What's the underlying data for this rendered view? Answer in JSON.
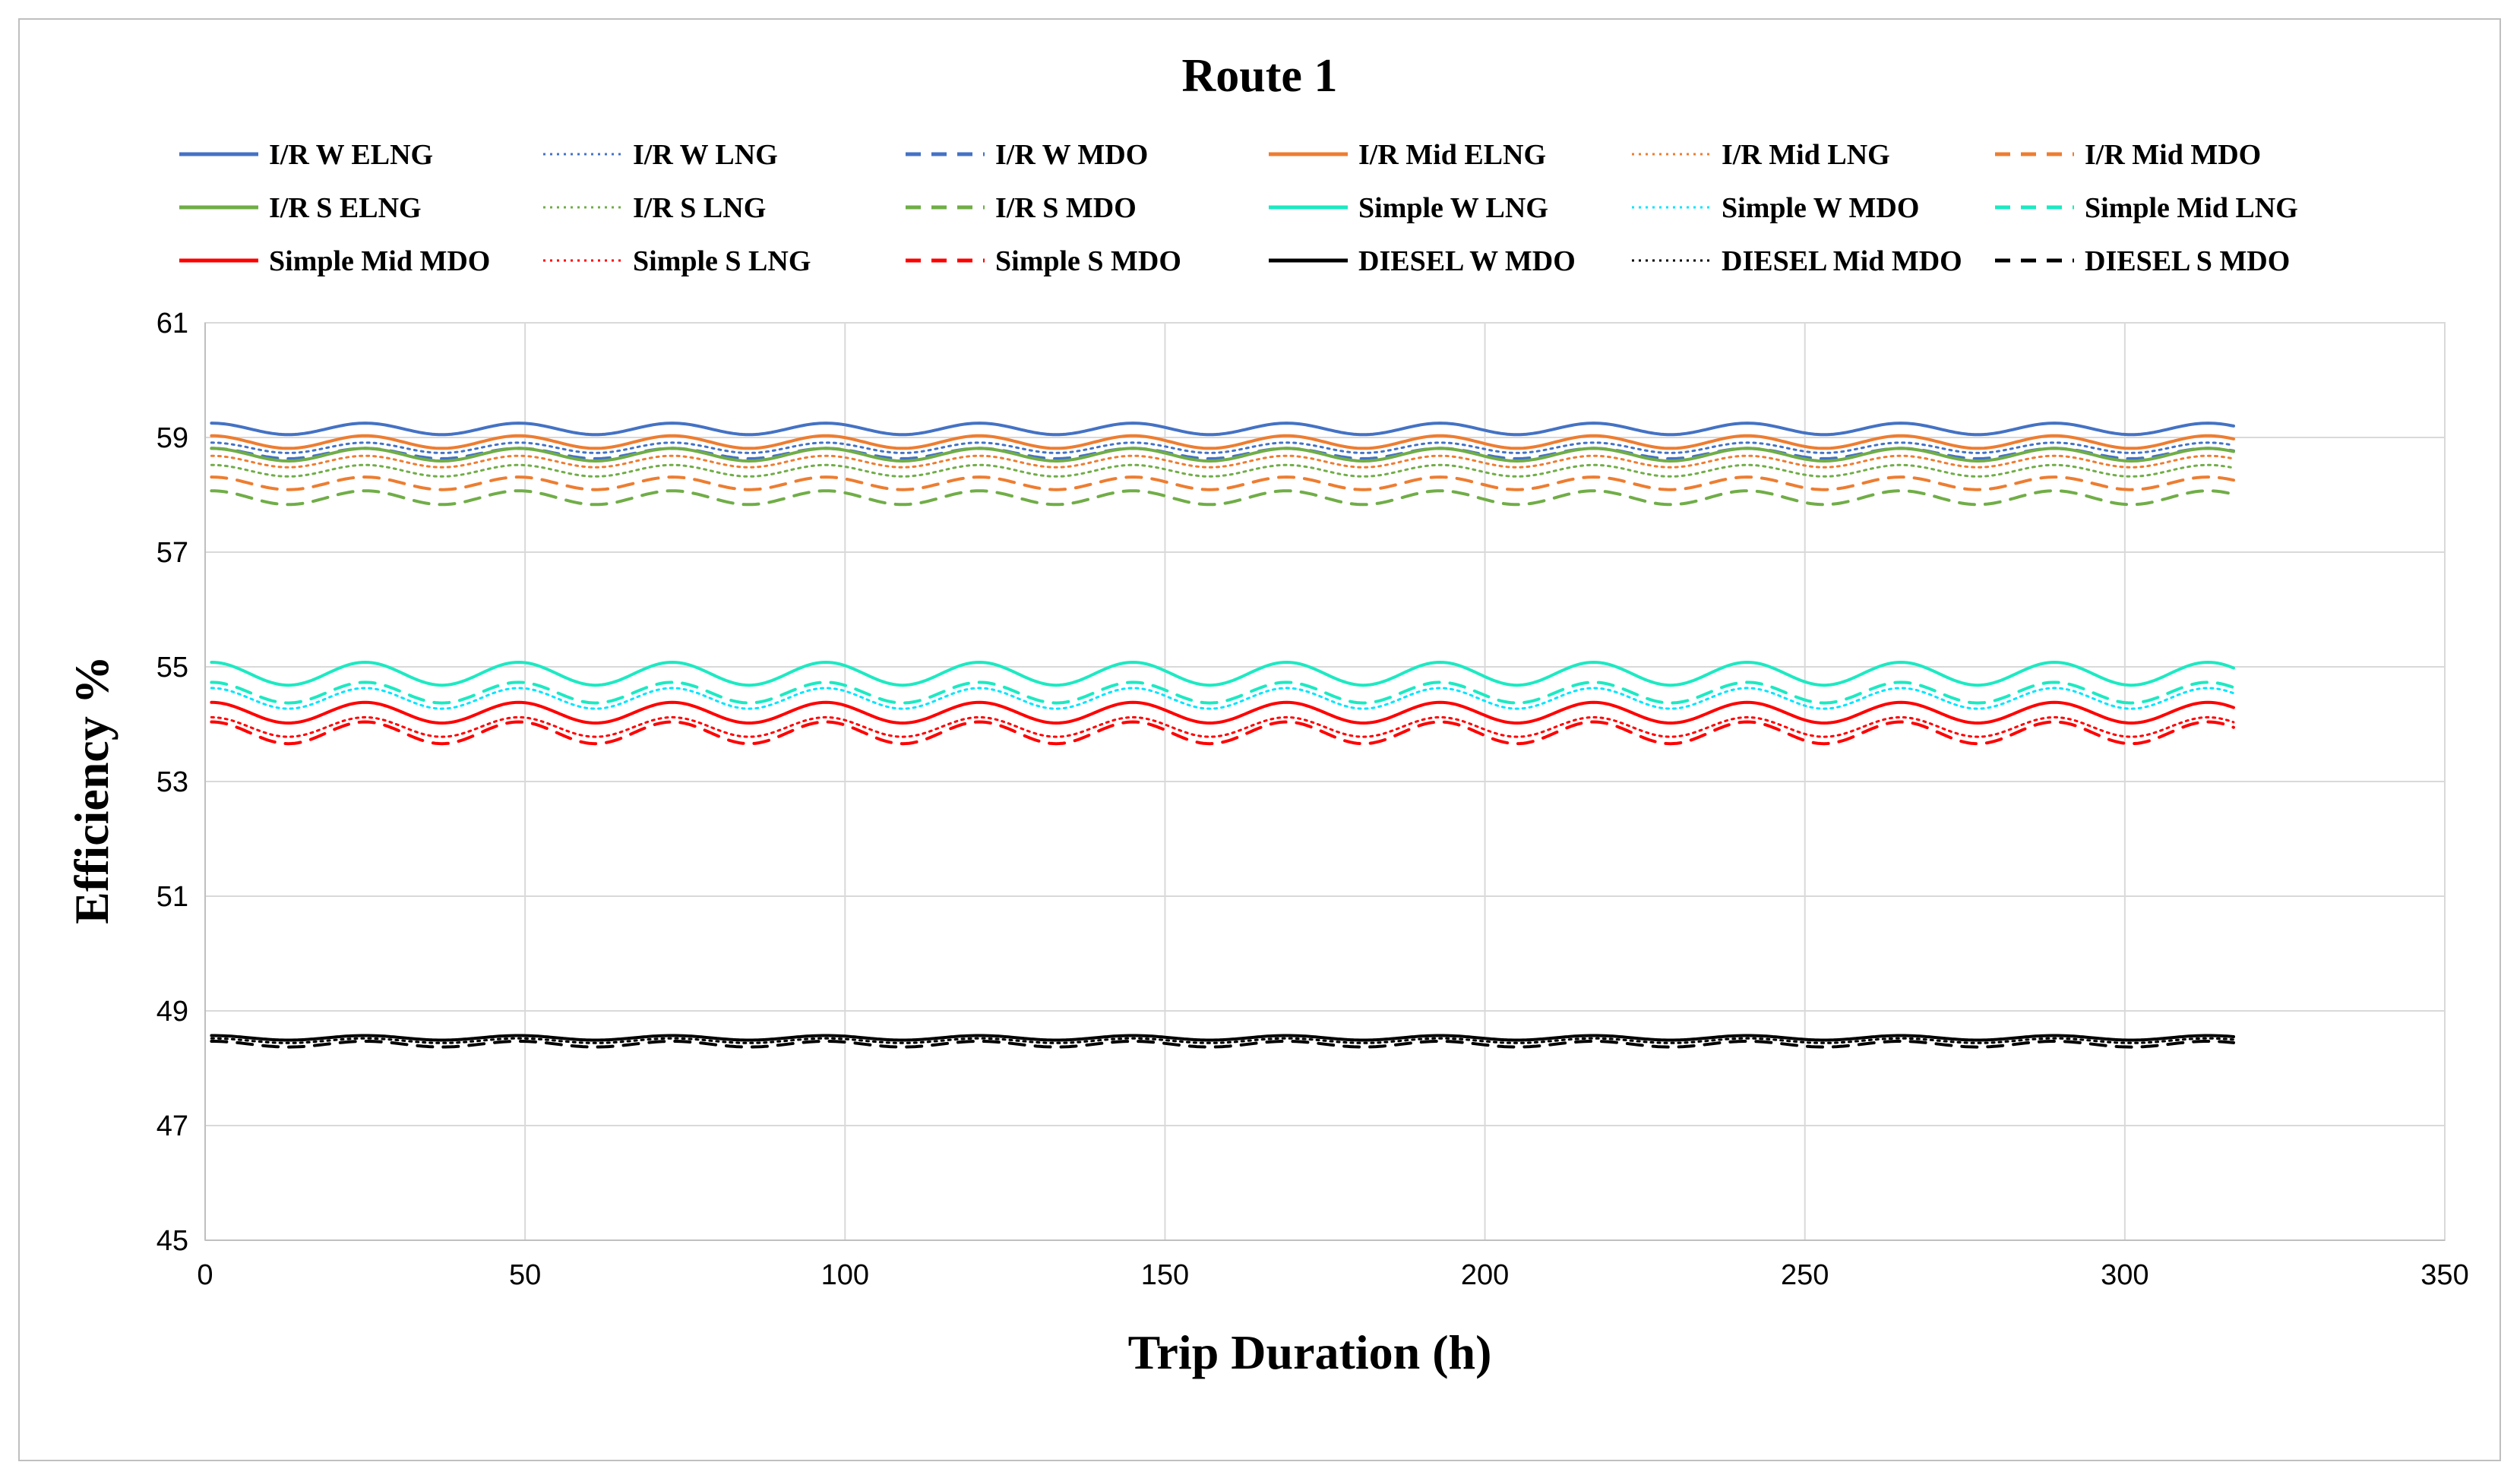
{
  "chart_data": {
    "type": "line",
    "title": "Route 1",
    "xlabel": "Trip Duration (h)",
    "ylabel": "Efficiency %",
    "xlim": [
      0,
      350
    ],
    "ylim": [
      45,
      61
    ],
    "xticks": [
      0,
      50,
      100,
      150,
      200,
      250,
      300,
      350
    ],
    "yticks": [
      45,
      47,
      49,
      51,
      53,
      55,
      57,
      59,
      61
    ],
    "grid": true,
    "legend_position": "top",
    "x_range": [
      1,
      317
    ],
    "oscillation_period_h": 24,
    "series": [
      {
        "name": "I/R W ELNG",
        "color": "#4472c4",
        "dash": "solid",
        "mean": 59.15,
        "amplitude": 0.1
      },
      {
        "name": "I/R W LNG",
        "color": "#4472c4",
        "dash": "dotted",
        "mean": 58.82,
        "amplitude": 0.09
      },
      {
        "name": "I/R W MDO",
        "color": "#4472c4",
        "dash": "dashed",
        "mean": 58.72,
        "amplitude": 0.09
      },
      {
        "name": "I/R Mid ELNG",
        "color": "#ed7d31",
        "dash": "solid",
        "mean": 58.92,
        "amplitude": 0.11
      },
      {
        "name": "I/R Mid LNG",
        "color": "#ed7d31",
        "dash": "dotted",
        "mean": 58.58,
        "amplitude": 0.1
      },
      {
        "name": "I/R Mid MDO",
        "color": "#ed7d31",
        "dash": "dashed",
        "mean": 58.2,
        "amplitude": 0.11
      },
      {
        "name": "I/R S ELNG",
        "color": "#70ad47",
        "dash": "solid",
        "mean": 58.7,
        "amplitude": 0.11
      },
      {
        "name": "I/R S LNG",
        "color": "#70ad47",
        "dash": "dotted",
        "mean": 58.42,
        "amplitude": 0.1
      },
      {
        "name": "I/R S MDO",
        "color": "#70ad47",
        "dash": "dashed",
        "mean": 57.95,
        "amplitude": 0.12
      },
      {
        "name": "Simple W LNG",
        "color": "#1de9c2",
        "dash": "solid",
        "mean": 54.88,
        "amplitude": 0.2
      },
      {
        "name": "Simple W MDO",
        "color": "#00e5ff",
        "dash": "dotted",
        "mean": 54.45,
        "amplitude": 0.18
      },
      {
        "name": "Simple Mid LNG",
        "color": "#1de9c2",
        "dash": "dashed",
        "mean": 54.55,
        "amplitude": 0.18
      },
      {
        "name": "Simple Mid MDO",
        "color": "#ff0000",
        "dash": "solid",
        "mean": 54.2,
        "amplitude": 0.18
      },
      {
        "name": "Simple S LNG",
        "color": "#ff0000",
        "dash": "dotted",
        "mean": 53.95,
        "amplitude": 0.17
      },
      {
        "name": "Simple S MDO",
        "color": "#ff0000",
        "dash": "dashed",
        "mean": 53.85,
        "amplitude": 0.19
      },
      {
        "name": "DIESEL W MDO",
        "color": "#000000",
        "dash": "solid",
        "mean": 48.53,
        "amplitude": 0.04
      },
      {
        "name": "DIESEL Mid MDO",
        "color": "#000000",
        "dash": "dotted",
        "mean": 48.48,
        "amplitude": 0.04
      },
      {
        "name": "DIESEL S MDO",
        "color": "#000000",
        "dash": "dashed",
        "mean": 48.42,
        "amplitude": 0.05
      }
    ]
  }
}
